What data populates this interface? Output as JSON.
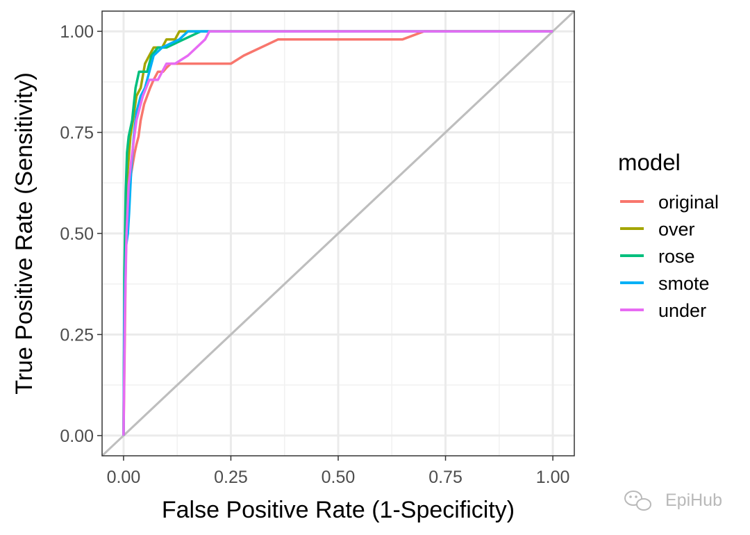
{
  "chart_data": {
    "type": "line",
    "title": "",
    "xlabel": "False Positive Rate (1-Specificity)",
    "ylabel": "True Positive Rate (Sensitivity)",
    "xlim": [
      -0.05,
      1.05
    ],
    "ylim": [
      -0.05,
      1.05
    ],
    "x_ticks": [
      0,
      0.25,
      0.5,
      0.75,
      1
    ],
    "x_tick_labels": [
      "0.00",
      "0.25",
      "0.50",
      "0.75",
      "1.00"
    ],
    "y_ticks": [
      0,
      0.25,
      0.5,
      0.75,
      1
    ],
    "y_tick_labels": [
      "0.00",
      "0.25",
      "0.50",
      "0.75",
      "1.00"
    ],
    "minor_ticks": [
      0.125,
      0.375,
      0.625,
      0.875
    ],
    "grid": true,
    "legend_position": "right",
    "legend_title": "model",
    "reference_line": {
      "from": [
        0,
        0
      ],
      "to": [
        1,
        1
      ],
      "color": "#bebebe"
    },
    "series": [
      {
        "name": "original",
        "color": "#F8766D",
        "points": [
          [
            0,
            0
          ],
          [
            0.003,
            0.25
          ],
          [
            0.006,
            0.5
          ],
          [
            0.012,
            0.6
          ],
          [
            0.018,
            0.65
          ],
          [
            0.026,
            0.7
          ],
          [
            0.03,
            0.72
          ],
          [
            0.035,
            0.74
          ],
          [
            0.04,
            0.78
          ],
          [
            0.048,
            0.82
          ],
          [
            0.055,
            0.84
          ],
          [
            0.062,
            0.86
          ],
          [
            0.07,
            0.88
          ],
          [
            0.08,
            0.9
          ],
          [
            0.092,
            0.9
          ],
          [
            0.1,
            0.91
          ],
          [
            0.11,
            0.92
          ],
          [
            0.25,
            0.92
          ],
          [
            0.28,
            0.94
          ],
          [
            0.36,
            0.98
          ],
          [
            0.65,
            0.98
          ],
          [
            0.7,
            1.0
          ],
          [
            1.0,
            1.0
          ]
        ]
      },
      {
        "name": "over",
        "color": "#A3A500",
        "points": [
          [
            0,
            0
          ],
          [
            0.002,
            0.3
          ],
          [
            0.005,
            0.55
          ],
          [
            0.01,
            0.66
          ],
          [
            0.016,
            0.74
          ],
          [
            0.022,
            0.78
          ],
          [
            0.03,
            0.84
          ],
          [
            0.04,
            0.86
          ],
          [
            0.05,
            0.92
          ],
          [
            0.07,
            0.96
          ],
          [
            0.09,
            0.96
          ],
          [
            0.1,
            0.98
          ],
          [
            0.12,
            0.98
          ],
          [
            0.13,
            1.0
          ],
          [
            1.0,
            1.0
          ]
        ]
      },
      {
        "name": "rose",
        "color": "#00BF7D",
        "points": [
          [
            0,
            0
          ],
          [
            0.002,
            0.4
          ],
          [
            0.005,
            0.6
          ],
          [
            0.008,
            0.7
          ],
          [
            0.012,
            0.74
          ],
          [
            0.02,
            0.78
          ],
          [
            0.028,
            0.86
          ],
          [
            0.036,
            0.9
          ],
          [
            0.055,
            0.9
          ],
          [
            0.065,
            0.94
          ],
          [
            0.08,
            0.96
          ],
          [
            0.1,
            0.96
          ],
          [
            0.12,
            0.97
          ],
          [
            0.14,
            0.98
          ],
          [
            0.16,
            0.99
          ],
          [
            0.18,
            1.0
          ],
          [
            1.0,
            1.0
          ]
        ]
      },
      {
        "name": "smote",
        "color": "#00B0F6",
        "points": [
          [
            0,
            0
          ],
          [
            0.002,
            0.3
          ],
          [
            0.006,
            0.47
          ],
          [
            0.01,
            0.5
          ],
          [
            0.013,
            0.55
          ],
          [
            0.018,
            0.66
          ],
          [
            0.024,
            0.74
          ],
          [
            0.03,
            0.8
          ],
          [
            0.04,
            0.84
          ],
          [
            0.05,
            0.86
          ],
          [
            0.06,
            0.9
          ],
          [
            0.07,
            0.94
          ],
          [
            0.09,
            0.96
          ],
          [
            0.11,
            0.97
          ],
          [
            0.13,
            0.98
          ],
          [
            0.15,
            1.0
          ],
          [
            1.0,
            1.0
          ]
        ]
      },
      {
        "name": "under",
        "color": "#E76BF3",
        "points": [
          [
            0,
            0
          ],
          [
            0.003,
            0.3
          ],
          [
            0.007,
            0.5
          ],
          [
            0.012,
            0.62
          ],
          [
            0.018,
            0.68
          ],
          [
            0.025,
            0.74
          ],
          [
            0.03,
            0.78
          ],
          [
            0.035,
            0.8
          ],
          [
            0.045,
            0.84
          ],
          [
            0.06,
            0.88
          ],
          [
            0.08,
            0.88
          ],
          [
            0.1,
            0.92
          ],
          [
            0.12,
            0.92
          ],
          [
            0.15,
            0.94
          ],
          [
            0.17,
            0.96
          ],
          [
            0.19,
            0.98
          ],
          [
            0.2,
            1.0
          ],
          [
            1.0,
            1.0
          ]
        ]
      }
    ]
  },
  "watermark": {
    "text": "EpiHub",
    "icon": "wechat-icon"
  }
}
